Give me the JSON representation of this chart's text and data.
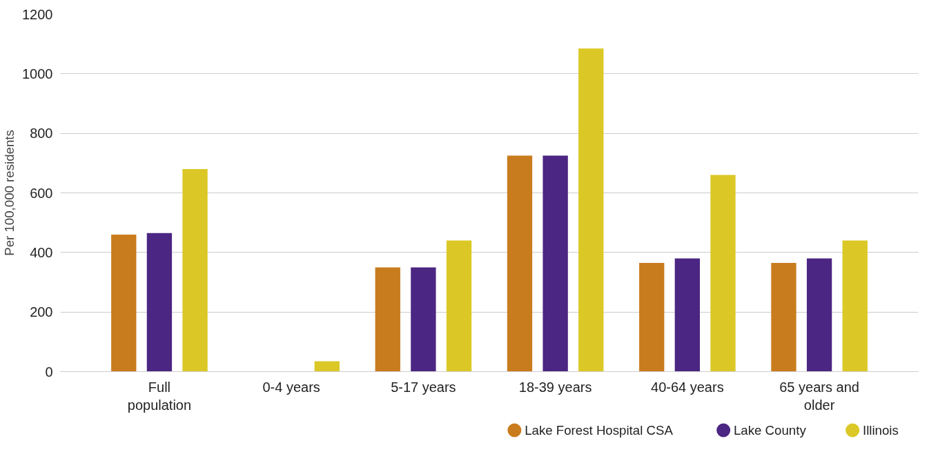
{
  "chart_data": {
    "type": "bar",
    "ylabel": "Per 100,000 residents",
    "categories": [
      "Full population",
      "0-4 years",
      "5-17 years",
      "18-39 years",
      "40-64 years",
      "65 years and older"
    ],
    "series": [
      {
        "name": "Lake Forest Hospital CSA",
        "color": "#c97c1d",
        "values": [
          460,
          0,
          350,
          725,
          365,
          365
        ]
      },
      {
        "name": "Lake County",
        "color": "#4b2682",
        "values": [
          465,
          0,
          350,
          725,
          380,
          380
        ]
      },
      {
        "name": "Illinois",
        "color": "#dbc826",
        "values": [
          680,
          35,
          440,
          1085,
          660,
          440
        ]
      }
    ],
    "ylim": [
      0,
      1200
    ],
    "yticks": [
      0,
      200,
      400,
      600,
      800,
      1000,
      1200
    ],
    "grid": "y",
    "legend": "bottom right"
  }
}
